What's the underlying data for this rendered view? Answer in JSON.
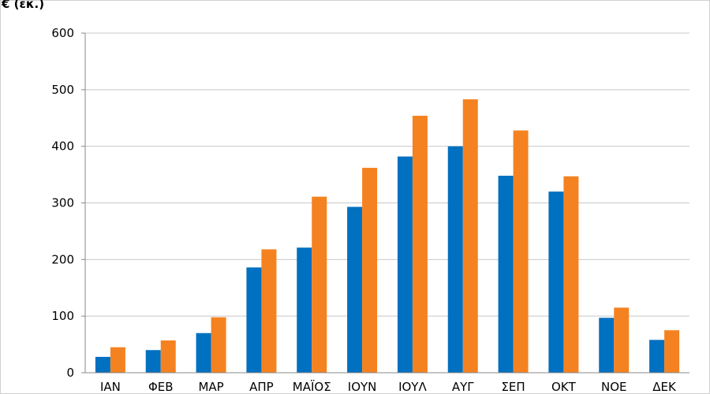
{
  "chart_data": {
    "type": "bar",
    "ylabel": "€ (εκ.)",
    "categories": [
      "ΙΑΝ",
      "ΦΕΒ",
      "ΜΑΡ",
      "ΑΠΡ",
      "ΜΑΪΟΣ",
      "ΙΟΥΝ",
      "ΙΟΥΛ",
      "ΑΥΓ",
      "ΣΕΠ",
      "ΟΚΤ",
      "ΝΟΕ",
      "ΔΕΚ"
    ],
    "series": [
      {
        "color": "#0070C0",
        "values": [
          28,
          40,
          70,
          186,
          221,
          293,
          382,
          400,
          348,
          320,
          97,
          58
        ]
      },
      {
        "color": "#F58220",
        "values": [
          45,
          57,
          98,
          218,
          311,
          362,
          454,
          483,
          428,
          347,
          115,
          75
        ]
      }
    ],
    "ylim": [
      0,
      600
    ],
    "yticks": [
      0,
      100,
      200,
      300,
      400,
      500,
      600
    ],
    "grid": true,
    "legend": "none"
  }
}
